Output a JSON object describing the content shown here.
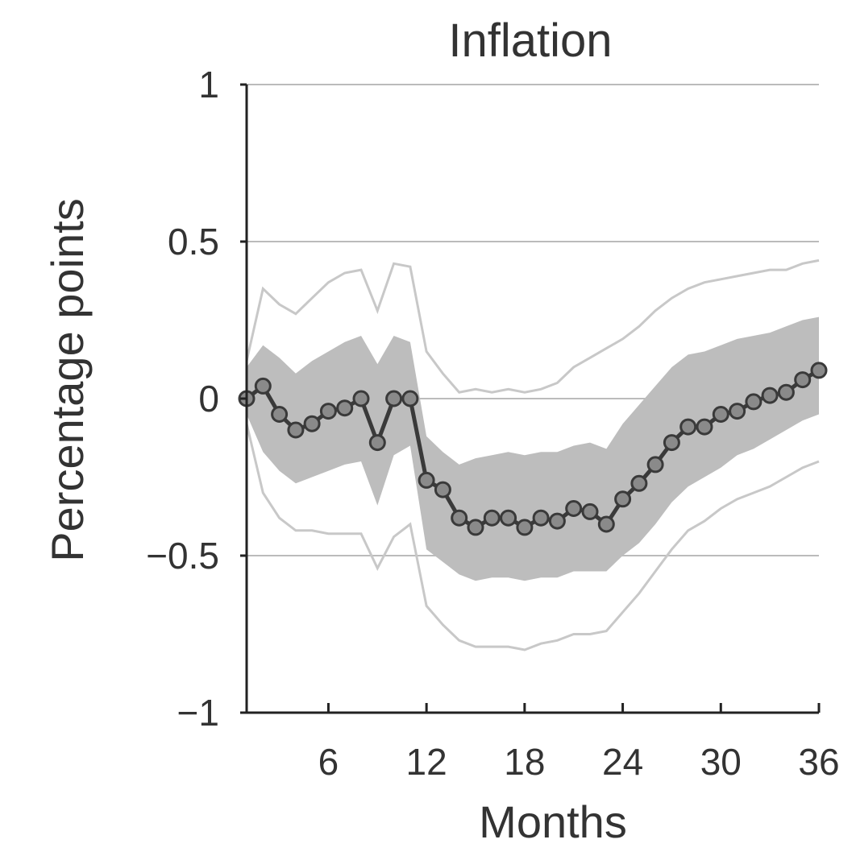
{
  "chart_data": {
    "type": "line",
    "title": "Inflation",
    "xlabel": "Months",
    "ylabel": "Percentage points",
    "xlim": [
      1,
      36
    ],
    "ylim": [
      -1,
      1
    ],
    "xticks": [
      6,
      12,
      18,
      24,
      30,
      36
    ],
    "xtick_labels": [
      "6",
      "12",
      "18",
      "24",
      "30",
      "36"
    ],
    "yticks": [
      1,
      0.5,
      0,
      -0.5,
      -1
    ],
    "ytick_labels": [
      "1",
      "0.5",
      "0",
      "−0.5",
      "−1"
    ],
    "grid": "horizontal",
    "colors": {
      "line": "#3a3a3a",
      "band": "#bdbdbd",
      "outer_band": "#c8c8c8",
      "grid": "#bbbbbb",
      "axis": "#222222"
    },
    "series": [
      {
        "role": "point-estimate",
        "x": [
          1,
          2,
          3,
          4,
          5,
          6,
          7,
          8,
          9,
          10,
          11,
          12,
          13,
          14,
          15,
          16,
          17,
          18,
          19,
          20,
          21,
          22,
          23,
          24,
          25,
          26,
          27,
          28,
          29,
          30,
          31,
          32,
          33,
          34,
          35,
          36
        ],
        "values": [
          0,
          0.04,
          -0.05,
          -0.1,
          -0.08,
          -0.04,
          -0.03,
          0,
          -0.14,
          0,
          0,
          -0.26,
          -0.29,
          -0.38,
          -0.41,
          -0.38,
          -0.38,
          -0.41,
          -0.38,
          -0.39,
          -0.35,
          -0.36,
          -0.4,
          -0.32,
          -0.27,
          -0.21,
          -0.14,
          -0.09,
          -0.09,
          -0.05,
          -0.04,
          -0.01,
          0.01,
          0.02,
          0.06,
          0.09
        ]
      },
      {
        "role": "inner-band-upper",
        "x": [
          1,
          2,
          3,
          4,
          5,
          6,
          7,
          8,
          9,
          10,
          11,
          12,
          13,
          14,
          15,
          16,
          17,
          18,
          19,
          20,
          21,
          22,
          23,
          24,
          25,
          26,
          27,
          28,
          29,
          30,
          31,
          32,
          33,
          34,
          35,
          36
        ],
        "values": [
          0.1,
          0.17,
          0.13,
          0.08,
          0.12,
          0.15,
          0.18,
          0.2,
          0.11,
          0.2,
          0.18,
          -0.12,
          -0.17,
          -0.21,
          -0.19,
          -0.18,
          -0.17,
          -0.18,
          -0.17,
          -0.17,
          -0.15,
          -0.14,
          -0.16,
          -0.08,
          -0.02,
          0.04,
          0.1,
          0.14,
          0.15,
          0.17,
          0.19,
          0.2,
          0.21,
          0.23,
          0.25,
          0.26
        ]
      },
      {
        "role": "inner-band-lower",
        "x": [
          1,
          2,
          3,
          4,
          5,
          6,
          7,
          8,
          9,
          10,
          11,
          12,
          13,
          14,
          15,
          16,
          17,
          18,
          19,
          20,
          21,
          22,
          23,
          24,
          25,
          26,
          27,
          28,
          29,
          30,
          31,
          32,
          33,
          34,
          35,
          36
        ],
        "values": [
          -0.05,
          -0.17,
          -0.23,
          -0.27,
          -0.25,
          -0.23,
          -0.21,
          -0.2,
          -0.34,
          -0.18,
          -0.15,
          -0.48,
          -0.52,
          -0.56,
          -0.58,
          -0.57,
          -0.57,
          -0.58,
          -0.57,
          -0.57,
          -0.55,
          -0.55,
          -0.55,
          -0.5,
          -0.46,
          -0.4,
          -0.33,
          -0.28,
          -0.25,
          -0.22,
          -0.18,
          -0.16,
          -0.13,
          -0.1,
          -0.07,
          -0.05
        ]
      },
      {
        "role": "outer-band-upper",
        "x": [
          1,
          2,
          3,
          4,
          5,
          6,
          7,
          8,
          9,
          10,
          11,
          12,
          13,
          14,
          15,
          16,
          17,
          18,
          19,
          20,
          21,
          22,
          23,
          24,
          25,
          26,
          27,
          28,
          29,
          30,
          31,
          32,
          33,
          34,
          35,
          36
        ],
        "values": [
          0.12,
          0.35,
          0.3,
          0.27,
          0.32,
          0.37,
          0.4,
          0.41,
          0.28,
          0.43,
          0.42,
          0.15,
          0.08,
          0.02,
          0.03,
          0.02,
          0.03,
          0.02,
          0.03,
          0.05,
          0.1,
          0.13,
          0.16,
          0.19,
          0.23,
          0.28,
          0.32,
          0.35,
          0.37,
          0.38,
          0.39,
          0.4,
          0.41,
          0.41,
          0.43,
          0.44
        ]
      },
      {
        "role": "outer-band-lower",
        "x": [
          1,
          2,
          3,
          4,
          5,
          6,
          7,
          8,
          9,
          10,
          11,
          12,
          13,
          14,
          15,
          16,
          17,
          18,
          19,
          20,
          21,
          22,
          23,
          24,
          25,
          26,
          27,
          28,
          29,
          30,
          31,
          32,
          33,
          34,
          35,
          36
        ],
        "values": [
          -0.08,
          -0.3,
          -0.38,
          -0.42,
          -0.42,
          -0.43,
          -0.43,
          -0.43,
          -0.54,
          -0.44,
          -0.4,
          -0.66,
          -0.72,
          -0.77,
          -0.79,
          -0.79,
          -0.79,
          -0.8,
          -0.78,
          -0.77,
          -0.75,
          -0.75,
          -0.74,
          -0.68,
          -0.62,
          -0.55,
          -0.48,
          -0.42,
          -0.39,
          -0.35,
          -0.32,
          -0.3,
          -0.28,
          -0.25,
          -0.22,
          -0.2
        ]
      }
    ]
  }
}
